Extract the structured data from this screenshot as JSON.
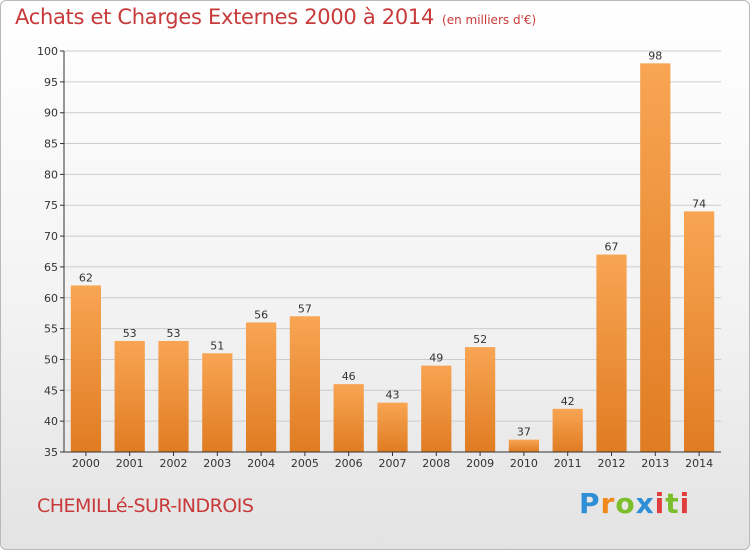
{
  "header": {
    "title": "Achats et Charges Externes 2000 à 2014",
    "unit": "(en milliers d'€)"
  },
  "footer": {
    "commune": "CHEMILLé-SUR-INDROIS",
    "brand": "Proxiti",
    "brand_letters": [
      {
        "ch": "P",
        "color": "#2f8fd6"
      },
      {
        "ch": "r",
        "color": "#f08a1c"
      },
      {
        "ch": "o",
        "color": "#7cbd2c"
      },
      {
        "ch": "x",
        "color": "#2f8fd6"
      },
      {
        "ch": "i",
        "color": "#e23d3d"
      },
      {
        "ch": "t",
        "color": "#7cbd2c"
      },
      {
        "ch": "i",
        "color": "#e23d3d"
      }
    ]
  },
  "colors": {
    "title": "#c83a3a",
    "bar_light": "#f8a553",
    "bar_dark": "#e07c22",
    "grid": "#cccccc",
    "axis": "#333333"
  },
  "chart_data": {
    "type": "bar",
    "categories": [
      "2000",
      "2001",
      "2002",
      "2003",
      "2004",
      "2005",
      "2006",
      "2007",
      "2008",
      "2009",
      "2010",
      "2011",
      "2012",
      "2013",
      "2014"
    ],
    "values": [
      62,
      53,
      53,
      51,
      56,
      57,
      46,
      43,
      49,
      52,
      37,
      42,
      67,
      98,
      74
    ],
    "ylim": [
      35,
      100
    ],
    "yticks": [
      35,
      40,
      45,
      50,
      55,
      60,
      65,
      70,
      75,
      80,
      85,
      90,
      95,
      100
    ],
    "grid": true,
    "data_labels": true
  }
}
